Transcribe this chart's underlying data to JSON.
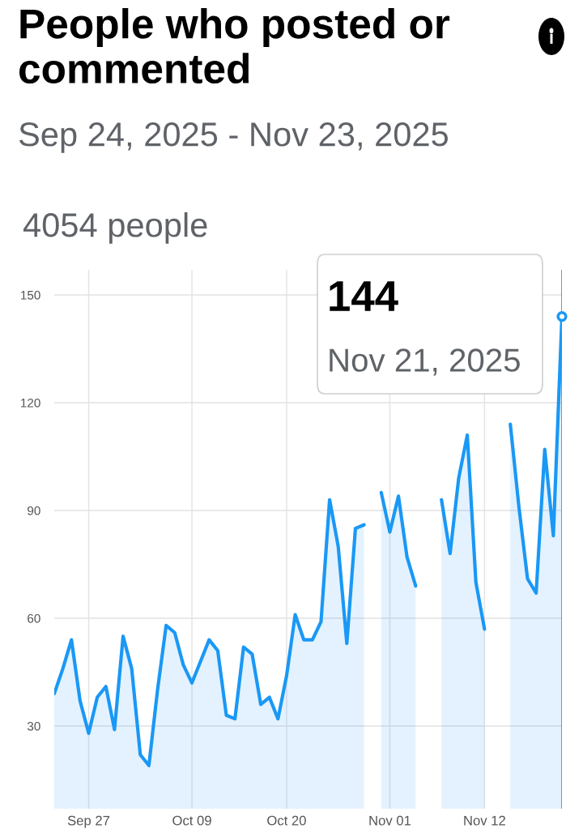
{
  "chart_data": {
    "type": "area",
    "title": "People who posted or commented",
    "subtitle": "Sep 24, 2025 - Nov 23, 2025",
    "annotations": [
      "4054 people",
      "144",
      "Nov 21, 2025"
    ],
    "x": [
      "2025-09-23",
      "2025-09-24",
      "2025-09-25",
      "2025-09-26",
      "2025-09-27",
      "2025-09-28",
      "2025-09-29",
      "2025-09-30",
      "2025-10-01",
      "2025-10-02",
      "2025-10-03",
      "2025-10-04",
      "2025-10-05",
      "2025-10-06",
      "2025-10-07",
      "2025-10-08",
      "2025-10-09",
      "2025-10-10",
      "2025-10-11",
      "2025-10-12",
      "2025-10-13",
      "2025-10-14",
      "2025-10-15",
      "2025-10-16",
      "2025-10-17",
      "2025-10-18",
      "2025-10-19",
      "2025-10-20",
      "2025-10-21",
      "2025-10-22",
      "2025-10-23",
      "2025-10-24",
      "2025-10-25",
      "2025-10-26",
      "2025-10-27",
      "2025-10-28",
      "2025-10-29",
      "2025-10-30",
      "2025-10-31",
      "2025-11-01",
      "2025-11-02",
      "2025-11-03",
      "2025-11-04",
      "2025-11-05",
      "2025-11-06",
      "2025-11-07",
      "2025-11-08",
      "2025-11-09",
      "2025-11-10",
      "2025-11-11",
      "2025-11-12",
      "2025-11-13",
      "2025-11-14",
      "2025-11-15",
      "2025-11-16",
      "2025-11-17",
      "2025-11-18",
      "2025-11-19",
      "2025-11-20",
      "2025-11-21"
    ],
    "series": [
      {
        "color": "#1a98f5",
        "values": [
          39,
          46,
          54,
          37,
          28,
          38,
          41,
          29,
          55,
          46,
          22,
          19,
          40,
          58,
          56,
          47,
          42,
          48,
          54,
          51,
          33,
          32,
          52,
          50,
          36,
          38,
          32,
          44,
          61,
          54,
          54,
          59,
          93,
          80,
          53,
          85,
          86,
          null,
          95,
          84,
          94,
          77,
          69,
          null,
          null,
          93,
          78,
          99,
          111,
          70,
          57,
          null,
          null,
          114,
          91,
          71,
          67,
          107,
          83,
          144
        ]
      }
    ],
    "xlim": [
      "2025-09-23",
      "2025-11-21"
    ],
    "xticks": [
      {
        "value": "2025-09-27",
        "label": "Sep 27"
      },
      {
        "value": "2025-10-09",
        "label": "Oct 09"
      },
      {
        "value": "2025-10-20",
        "label": "Oct 20"
      },
      {
        "value": "2025-11-01",
        "label": "Nov 01"
      },
      {
        "value": "2025-11-12",
        "label": "Nov 12"
      }
    ],
    "ylim": [
      7,
      157
    ],
    "yticks": [
      30,
      60,
      90,
      120,
      150
    ],
    "ref_lines": [
      {
        "axis": "x",
        "value": "2025-11-21",
        "color": "#1a98f5"
      }
    ],
    "grid": true,
    "legend": false,
    "line_style": "solid"
  }
}
